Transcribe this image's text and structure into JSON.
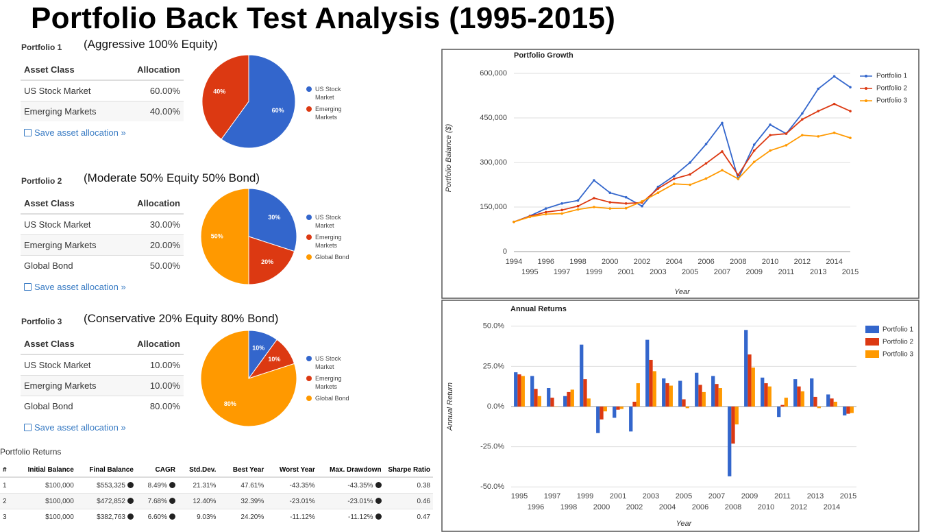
{
  "title": "Portfolio Back Test Analysis (1995-2015)",
  "portfolios": [
    {
      "name": "Portfolio 1",
      "description": "(Aggressive 100% Equity)",
      "columns": [
        "Asset Class",
        "Allocation"
      ],
      "rows": [
        [
          "US Stock Market",
          "60.00%"
        ],
        [
          "Emerging Markets",
          "40.00%"
        ]
      ],
      "link": "Save asset allocation »"
    },
    {
      "name": "Portfolio 2",
      "description": "(Moderate 50% Equity 50% Bond)",
      "columns": [
        "Asset Class",
        "Allocation"
      ],
      "rows": [
        [
          "US Stock Market",
          "30.00%"
        ],
        [
          "Emerging Markets",
          "20.00%"
        ],
        [
          "Global Bond",
          "50.00%"
        ]
      ],
      "link": "Save asset allocation »"
    },
    {
      "name": "Portfolio 3",
      "description": "(Conservative 20% Equity 80% Bond)",
      "columns": [
        "Asset Class",
        "Allocation"
      ],
      "rows": [
        [
          "US Stock Market",
          "10.00%"
        ],
        [
          "Emerging Markets",
          "10.00%"
        ],
        [
          "Global Bond",
          "80.00%"
        ]
      ],
      "link": "Save asset allocation »"
    }
  ],
  "returns": {
    "title": "Portfolio Returns",
    "columns": [
      "#",
      "Initial Balance",
      "Final Balance",
      "CAGR",
      "Std.Dev.",
      "Best Year",
      "Worst Year",
      "Max. Drawdown",
      "Sharpe Ratio"
    ],
    "rows": [
      [
        "1",
        "$100,000",
        "$553,325",
        "8.49%",
        "21.31%",
        "47.61%",
        "-43.35%",
        "-43.35%",
        "0.38"
      ],
      [
        "2",
        "$100,000",
        "$472,852",
        "7.68%",
        "12.40%",
        "32.39%",
        "-23.01%",
        "-23.01%",
        "0.46"
      ],
      [
        "3",
        "$100,000",
        "$382,763",
        "6.60%",
        "9.03%",
        "24.20%",
        "-11.12%",
        "-11.12%",
        "0.47"
      ]
    ]
  },
  "chart_data": [
    {
      "type": "pie",
      "categories": [
        "US Stock Market",
        "Emerging Markets"
      ],
      "values": [
        60,
        40
      ],
      "value_labels": [
        "60%",
        "40%"
      ],
      "colors": [
        "#3366cc",
        "#dc3912"
      ]
    },
    {
      "type": "pie",
      "categories": [
        "US Stock Market",
        "Emerging Markets",
        "Global Bond"
      ],
      "values": [
        30,
        20,
        50
      ],
      "value_labels": [
        "30%",
        "20%",
        "50%"
      ],
      "colors": [
        "#3366cc",
        "#dc3912",
        "#ff9900"
      ]
    },
    {
      "type": "pie",
      "categories": [
        "US Stock Market",
        "Emerging Markets",
        "Global Bond"
      ],
      "values": [
        10,
        10,
        80
      ],
      "value_labels": [
        "10%",
        "10%",
        "80%"
      ],
      "colors": [
        "#3366cc",
        "#dc3912",
        "#ff9900"
      ]
    },
    {
      "type": "line",
      "title": "Portfolio Growth",
      "x_label": "Year",
      "y_label": "Portfolio Balance ($)",
      "x": [
        1994,
        1995,
        1996,
        1997,
        1998,
        1999,
        2000,
        2001,
        2002,
        2003,
        2004,
        2005,
        2006,
        2007,
        2008,
        2009,
        2010,
        2011,
        2012,
        2013,
        2014,
        2015
      ],
      "xlim": [
        1994,
        2015
      ],
      "xticks": [
        1994,
        1995,
        1996,
        1997,
        1998,
        1999,
        2000,
        2001,
        2002,
        2003,
        2004,
        2005,
        2006,
        2007,
        2008,
        2009,
        2010,
        2011,
        2012,
        2013,
        2014,
        2015
      ],
      "ylim": [
        0,
        630000
      ],
      "yticks": [
        0,
        {
          "value": 150000,
          "label": "150,000"
        },
        {
          "value": 300000,
          "label": "300,000"
        },
        {
          "value": 450000,
          "label": "450,000"
        },
        {
          "value": 600000,
          "label": "600,000"
        }
      ],
      "grid": true,
      "legend": "right",
      "series": [
        {
          "name": "Portfolio 1",
          "color": "#3366cc",
          "values": [
            100000,
            120000,
            145000,
            162000,
            172000,
            240000,
            198000,
            183000,
            153000,
            218000,
            255000,
            300000,
            362000,
            433000,
            245000,
            360000,
            427000,
            397000,
            465000,
            548000,
            590000,
            553325
          ]
        },
        {
          "name": "Portfolio 2",
          "color": "#dc3912",
          "values": [
            100000,
            119000,
            133000,
            140000,
            153000,
            180000,
            166000,
            162000,
            165000,
            212000,
            245000,
            260000,
            297000,
            337000,
            258000,
            340000,
            392000,
            397000,
            445000,
            473000,
            497000,
            472852
          ]
        },
        {
          "name": "Portfolio 3",
          "color": "#ff9900",
          "values": [
            100000,
            117000,
            126000,
            128000,
            142000,
            150000,
            145000,
            146000,
            169000,
            198000,
            228000,
            225000,
            246000,
            274000,
            245000,
            302000,
            340000,
            358000,
            392000,
            388000,
            400000,
            382763
          ]
        }
      ]
    },
    {
      "type": "bar",
      "title": "Annual Returns",
      "x_label": "Year",
      "y_label": "Annual Return",
      "categories": [
        "1995",
        "1996",
        "1997",
        "1998",
        "1999",
        "2000",
        "2001",
        "2002",
        "2003",
        "2004",
        "2005",
        "2006",
        "2007",
        "2008",
        "2009",
        "2010",
        "2011",
        "2012",
        "2013",
        "2014",
        "2015"
      ],
      "ylim": [
        -52,
        52
      ],
      "yticks": [
        {
          "value": -50,
          "label": "-50.0%"
        },
        {
          "value": -25,
          "label": "-25.0%"
        },
        {
          "value": 0,
          "label": "0.0%"
        },
        {
          "value": 25,
          "label": "25.0%"
        },
        {
          "value": 50,
          "label": "50.0%"
        }
      ],
      "grid": true,
      "legend": "right",
      "series": [
        {
          "name": "Portfolio 1",
          "color": "#3366cc",
          "values": [
            21.3,
            19,
            11.5,
            6.5,
            38.5,
            -16.5,
            -7,
            -15.5,
            41.5,
            17.5,
            16,
            21,
            19,
            -43.35,
            47.61,
            18,
            -6.5,
            17,
            17.5,
            7.5,
            -5.5
          ]
        },
        {
          "name": "Portfolio 2",
          "color": "#dc3912",
          "values": [
            20,
            11,
            5.5,
            9,
            17,
            -8,
            -2,
            3,
            29,
            14.5,
            4.5,
            13.5,
            14,
            -23.01,
            32.39,
            14.5,
            1,
            12.5,
            6,
            5,
            -4.5
          ]
        },
        {
          "name": "Portfolio 3",
          "color": "#ff9900",
          "values": [
            19,
            6.5,
            0,
            10.5,
            5,
            -3,
            -1.5,
            14.5,
            22,
            13,
            -1,
            9,
            11.5,
            -11.12,
            24.2,
            12.5,
            5.5,
            9.5,
            -1,
            3,
            -4
          ]
        }
      ]
    }
  ]
}
